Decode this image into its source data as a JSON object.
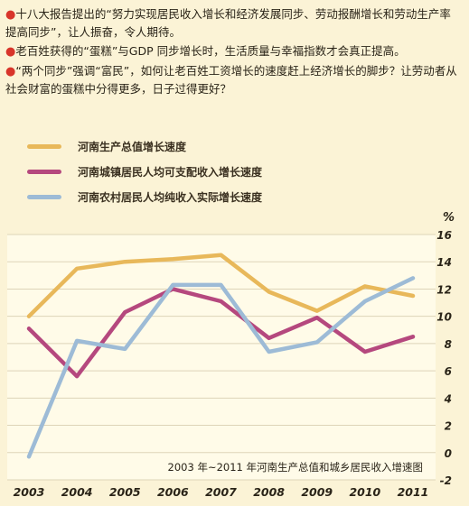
{
  "intro": [
    "十八大报告提出的“努力实现居民收入增长和经济发展同步、劳动报酬增长和劳动生产率提高同步”，让人振奋，令人期待。",
    "老百姓获得的“蛋糕”与GDP 同步增长时，生活质量与幸福指数才会真正提高。",
    "“两个同步”强调“富民”，如何让老百姓工资增长的速度赶上经济增长的脚步？让劳动者从社会财富的蛋糕中分得更多，日子过得更好？"
  ],
  "colors": {
    "background": "#fbf3d6",
    "plot_bg": "#fffbe8",
    "bullet": "#d8352a"
  },
  "chart_data": {
    "type": "line",
    "title": "2003 年~2011 年河南生产总值和城乡居民收入增速图",
    "unit": "%",
    "categories": [
      "2003",
      "2004",
      "2005",
      "2006",
      "2007",
      "2008",
      "2009",
      "2010",
      "2011"
    ],
    "ylim": [
      -2,
      16
    ],
    "yticks": [
      "-2",
      "0",
      "2",
      "4",
      "6",
      "8",
      "10",
      "12",
      "14",
      "16"
    ],
    "grid": true,
    "legend_position": "top-left",
    "series": [
      {
        "name": "河南生产总值增长速度",
        "color": "#e8b85a",
        "values": [
          10.0,
          13.5,
          14.0,
          14.2,
          14.5,
          11.8,
          10.4,
          12.2,
          11.5
        ]
      },
      {
        "name": "河南城镇居民人均可支配收入增长速度",
        "color": "#b5487e",
        "values": [
          9.1,
          5.6,
          10.3,
          12.0,
          11.1,
          8.4,
          9.9,
          7.4,
          8.5
        ]
      },
      {
        "name": "河南农村居民人均纯收入实际增长速度",
        "color": "#9dbbd6",
        "values": [
          -0.3,
          8.2,
          7.6,
          12.3,
          12.3,
          7.4,
          8.1,
          11.1,
          12.8
        ]
      }
    ]
  }
}
